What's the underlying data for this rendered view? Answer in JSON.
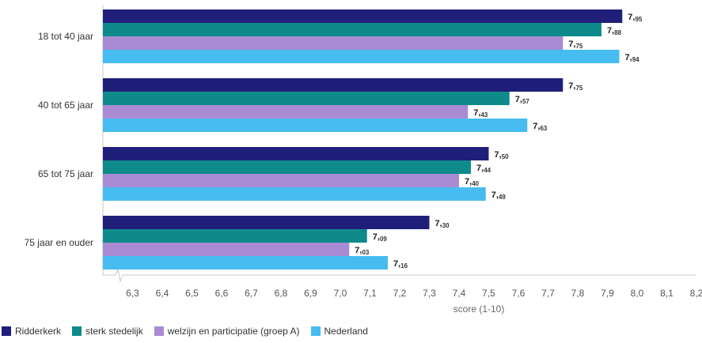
{
  "chart_data": {
    "type": "bar",
    "orientation": "horizontal",
    "categories": [
      "18 tot 40 jaar",
      "40 tot 65 jaar",
      "65 tot 75 jaar",
      "75 jaar en ouder"
    ],
    "series": [
      {
        "name": "Ridderkerk",
        "color": "#1f1f7a",
        "values": [
          7.95,
          7.75,
          7.5,
          7.3
        ],
        "labels": [
          "95",
          "75",
          "50",
          "30"
        ]
      },
      {
        "name": "sterk stedelijk",
        "color": "#0f8a8a",
        "values": [
          7.88,
          7.57,
          7.44,
          7.09
        ],
        "labels": [
          "88",
          "57",
          "44",
          "09"
        ]
      },
      {
        "name": "welzijn en participatie (groep A)",
        "color": "#a98bd4",
        "values": [
          7.75,
          7.43,
          7.4,
          7.03
        ],
        "labels": [
          "75",
          "43",
          "40",
          "03"
        ]
      },
      {
        "name": "Nederland",
        "color": "#46bcf0",
        "values": [
          7.94,
          7.63,
          7.49,
          7.16
        ],
        "labels": [
          "94",
          "63",
          "49",
          "16"
        ]
      }
    ],
    "xlabel": "score (1-10)",
    "xlim": [
      6.2,
      8.2
    ],
    "xticks": [
      "6,3",
      "6,4",
      "6,5",
      "6,6",
      "6,7",
      "6,8",
      "6,9",
      "7,0",
      "7,1",
      "7,2",
      "7,3",
      "7,4",
      "7,5",
      "7,6",
      "7,7",
      "7,8",
      "7,9",
      "8,0",
      "8,1",
      "8,2"
    ],
    "xtick_values": [
      6.3,
      6.4,
      6.5,
      6.6,
      6.7,
      6.8,
      6.9,
      7.0,
      7.1,
      7.2,
      7.3,
      7.4,
      7.5,
      7.6,
      7.7,
      7.8,
      7.9,
      8.0,
      8.1,
      8.2
    ],
    "value_label_int": "7,",
    "legend_position": "bottom-left",
    "grid": false,
    "axis_break": true
  }
}
